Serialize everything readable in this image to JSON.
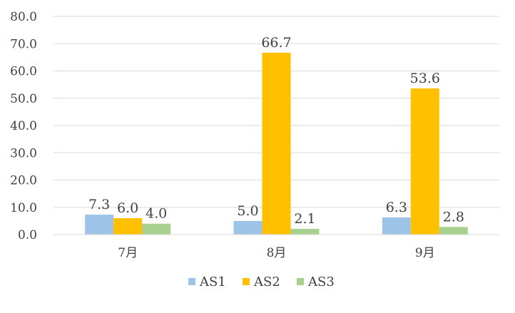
{
  "chart_data": {
    "type": "bar",
    "categories": [
      "7月",
      "8月",
      "9月"
    ],
    "series": [
      {
        "name": "AS1",
        "values": [
          7.3,
          5.0,
          6.3
        ],
        "color": "#9DC3E6"
      },
      {
        "name": "AS2",
        "values": [
          6.0,
          66.7,
          53.6
        ],
        "color": "#FFC000"
      },
      {
        "name": "AS3",
        "values": [
          4.0,
          2.1,
          2.8
        ],
        "color": "#A9D18E"
      }
    ],
    "ylim": [
      0,
      80
    ],
    "yticks": [
      "0.0",
      "10.0",
      "20.0",
      "30.0",
      "40.0",
      "50.0",
      "60.0",
      "70.0",
      "80.0"
    ],
    "grid": true,
    "gridColor": "#d9d9d9",
    "legend": "bottom",
    "title": "",
    "xlabel": "",
    "ylabel": ""
  }
}
